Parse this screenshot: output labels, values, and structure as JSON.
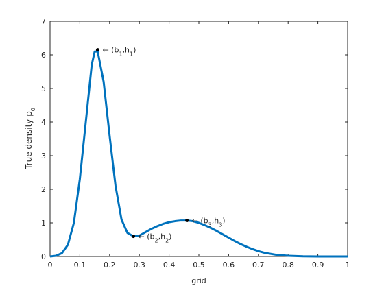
{
  "chart_data": {
    "type": "line",
    "xlabel": "grid",
    "ylabel_parts": [
      "True density p",
      "0"
    ],
    "series": [
      {
        "color": "#0072bd",
        "x": [
          0,
          0.02,
          0.04,
          0.06,
          0.08,
          0.1,
          0.12,
          0.14,
          0.15,
          0.16,
          0.18,
          0.2,
          0.22,
          0.24,
          0.26,
          0.28,
          0.3,
          0.32,
          0.34,
          0.36,
          0.38,
          0.4,
          0.42,
          0.44,
          0.46,
          0.48,
          0.5,
          0.52,
          0.54,
          0.56,
          0.58,
          0.6,
          0.62,
          0.64,
          0.66,
          0.68,
          0.7,
          0.72,
          0.74,
          0.76,
          0.78,
          0.8,
          0.85,
          0.9,
          1.0
        ],
        "values": [
          0,
          0.02,
          0.1,
          0.35,
          1.0,
          2.3,
          4.0,
          5.7,
          6.1,
          6.1,
          5.2,
          3.6,
          2.1,
          1.1,
          0.7,
          0.6,
          0.62,
          0.72,
          0.82,
          0.9,
          0.97,
          1.02,
          1.05,
          1.07,
          1.07,
          1.05,
          1.0,
          0.93,
          0.85,
          0.76,
          0.66,
          0.56,
          0.46,
          0.37,
          0.29,
          0.22,
          0.16,
          0.11,
          0.08,
          0.05,
          0.035,
          0.02,
          0.005,
          0,
          0
        ]
      }
    ],
    "annotations": [
      {
        "x": 0.16,
        "y": 6.15,
        "label_parts": [
          "← (b",
          "1",
          ",h",
          "1",
          ")"
        ]
      },
      {
        "x": 0.28,
        "y": 0.6,
        "label_parts": [
          "← (b",
          "2",
          ",h",
          "2",
          ")"
        ]
      },
      {
        "x": 0.46,
        "y": 1.07,
        "label_parts": [
          "← (b",
          "3",
          ",h",
          "3",
          ")"
        ]
      }
    ],
    "xlim": [
      0,
      1
    ],
    "ylim": [
      0,
      7
    ],
    "xticks": [
      0,
      0.1,
      0.2,
      0.3,
      0.4,
      0.5,
      0.6,
      0.7,
      0.8,
      0.9,
      1
    ],
    "yticks": [
      0,
      1,
      2,
      3,
      4,
      5,
      6,
      7
    ]
  }
}
